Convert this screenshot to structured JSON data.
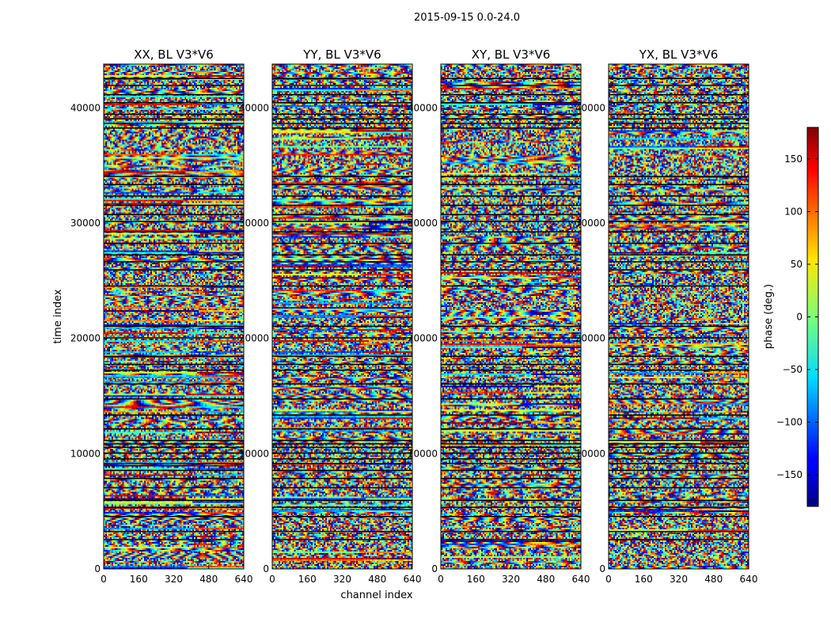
{
  "figure": {
    "suptitle": "2015-09-15 0.0-24.0"
  },
  "chart_data": {
    "type": "heatmap",
    "shared": {
      "xlabel": "channel index",
      "ylabel": "time index",
      "xlim": [
        0,
        640
      ],
      "ylim": [
        0,
        43800
      ],
      "xticks": [
        0,
        160,
        320,
        480,
        640
      ],
      "yticks": [
        0,
        10000,
        20000,
        30000,
        40000
      ],
      "colormap": "jet",
      "clim": [
        -180,
        180
      ]
    },
    "panels": [
      {
        "title": "XX, BL V3*V6"
      },
      {
        "title": "YY, BL V3*V6"
      },
      {
        "title": "XY, BL V3*V6"
      },
      {
        "title": "YX, BL V3*V6"
      }
    ],
    "colorbar": {
      "label": "phase (deg.)",
      "range": [
        -180,
        180
      ],
      "ticks": [
        -150,
        -100,
        -50,
        0,
        50,
        100,
        150
      ],
      "tick_labels": [
        "−150",
        "−100",
        "−50",
        "0",
        "50",
        "100",
        "150"
      ]
    },
    "black_bands_time": [
      2600,
      3300,
      4600,
      5400,
      6000,
      7100,
      7900,
      8600,
      9200,
      9600,
      10100,
      10600,
      10900,
      11200,
      12200,
      13400,
      14800,
      16100,
      17300,
      17800,
      18500,
      20100,
      21100,
      24600,
      26000,
      26700,
      27300,
      28300,
      29300,
      30200,
      30800,
      31600,
      32400,
      33400,
      34100,
      38300,
      38700,
      39100,
      39500,
      40500,
      41200,
      42000,
      42600
    ]
  }
}
